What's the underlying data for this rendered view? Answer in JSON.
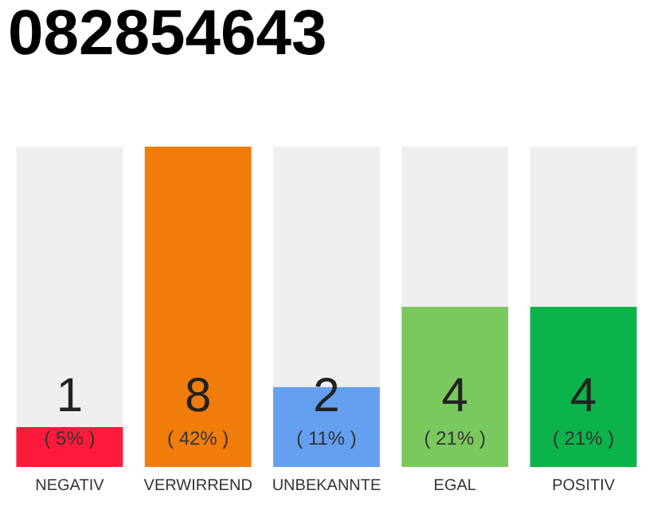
{
  "chart_data": {
    "type": "bar",
    "title": "082854643",
    "categories": [
      "NEGATIV",
      "VERWIRREND",
      "UNBEKANNTE",
      "EGAL",
      "POSITIV"
    ],
    "stacked": true,
    "ylim": [
      0,
      8
    ],
    "tick_labels": "x",
    "grid": false,
    "series": [
      {
        "colors": [
          "#ff1a3c",
          "#f07c0c",
          "#659ff0",
          "#7bc95e",
          "#0cb34a"
        ],
        "values": [
          1,
          8,
          2,
          4,
          4
        ],
        "value_labels": [
          "1",
          "8",
          "2",
          "4",
          "4"
        ]
      },
      {
        "color": "#efefef",
        "values": [
          7,
          0,
          6,
          4,
          4
        ]
      }
    ],
    "annotations": [
      "( 5% )",
      "( 42% )",
      "( 11% )",
      "( 21% )",
      "( 21% )"
    ]
  }
}
